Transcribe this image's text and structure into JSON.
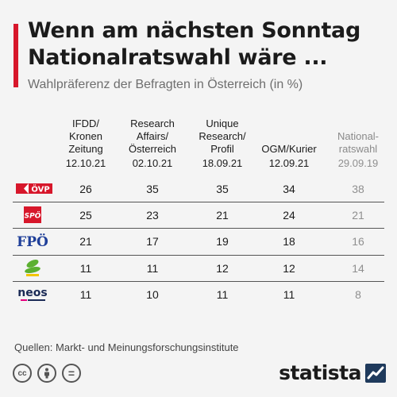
{
  "header": {
    "title_line1": "Wenn am nächsten Sonntag",
    "title_line2": "Nationalratswahl wäre ...",
    "subtitle": "Wahlpräferenz der Befragten in Österreich (in %)"
  },
  "colors": {
    "accent": "#d7172b",
    "text": "#1b1b1b",
    "muted": "#8f8f8f"
  },
  "chart_data": {
    "type": "table",
    "title": "Wenn am nächsten Sonntag Nationalratswahl wäre ...",
    "subtitle": "Wahlpräferenz der Befragten in Österreich (in %)",
    "columns": [
      {
        "lines": [
          "IFDD/",
          "Kronen",
          "Zeitung"
        ],
        "date": "12.10.21",
        "muted": false
      },
      {
        "lines": [
          "Research",
          "Affairs/",
          "Österreich"
        ],
        "date": "02.10.21",
        "muted": false
      },
      {
        "lines": [
          "Unique",
          "Research/",
          "Profil"
        ],
        "date": "18.09.21",
        "muted": false
      },
      {
        "lines": [
          "OGM/Kurier"
        ],
        "date": "12.09.21",
        "muted": false
      },
      {
        "lines": [
          "National-",
          "ratswahl"
        ],
        "date": "29.09.19",
        "muted": true
      }
    ],
    "rows": [
      {
        "party": "ÖVP",
        "logo": "oevp-logo",
        "values": [
          26,
          35,
          35,
          34,
          38
        ]
      },
      {
        "party": "SPÖ",
        "logo": "spoe-logo",
        "values": [
          25,
          23,
          21,
          24,
          21
        ]
      },
      {
        "party": "FPÖ",
        "logo": "fpoe-logo",
        "values": [
          21,
          17,
          19,
          18,
          16
        ]
      },
      {
        "party": "Grüne",
        "logo": "gruene-logo",
        "values": [
          11,
          11,
          12,
          12,
          14
        ]
      },
      {
        "party": "NEOS",
        "logo": "neos-logo",
        "values": [
          11,
          10,
          11,
          11,
          8
        ]
      }
    ]
  },
  "footer": {
    "source": "Quellen: Markt- und Meinungsforschungsinstitute",
    "brand": "statista",
    "license_icons": [
      "cc-icon",
      "by-icon",
      "nd-icon"
    ],
    "cc_text": "cc",
    "nd_text": "="
  },
  "logos": {
    "oevp": "ÖVP",
    "spoe": "SPÖ",
    "fpoe": "FPÖ",
    "neos": "neos"
  }
}
